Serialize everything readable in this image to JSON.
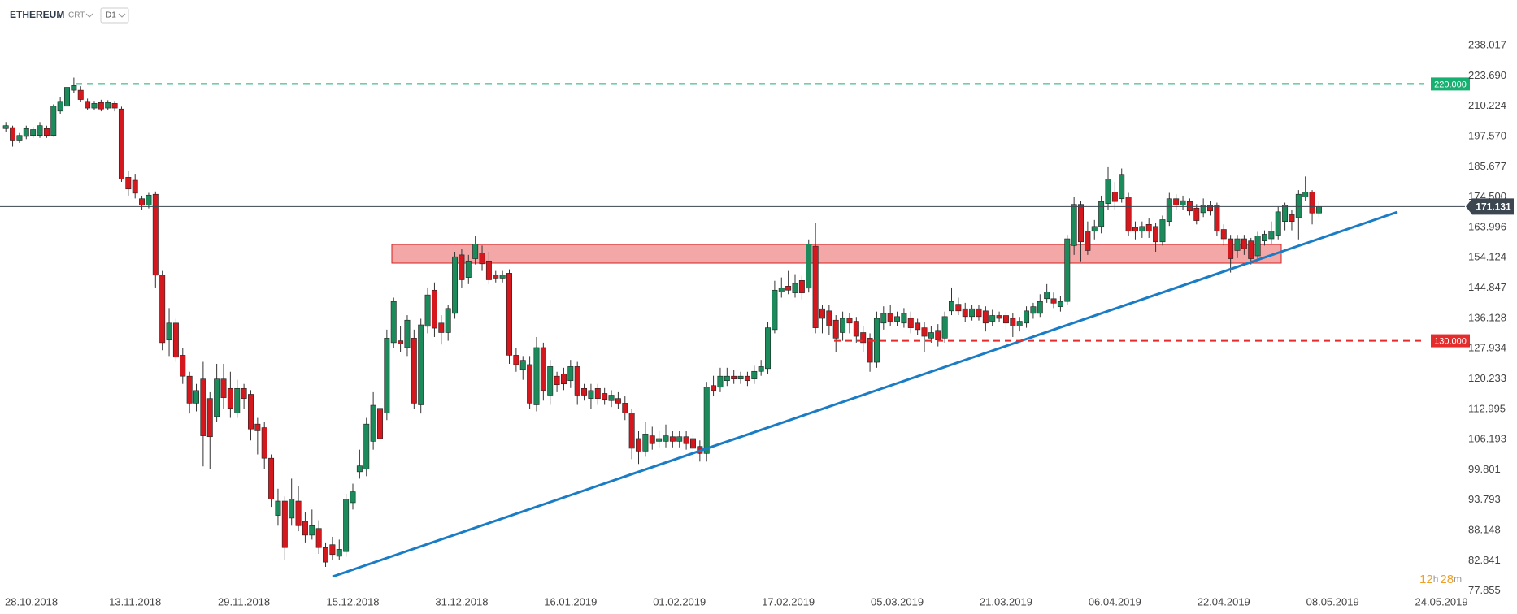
{
  "toolbar": {
    "symbol": "ETHEREUM",
    "chart_type": "CRT",
    "interval": "D1"
  },
  "countdown": [
    "12",
    "h",
    "28",
    "m"
  ],
  "chart_data": {
    "type": "candlestick",
    "log_scale": true,
    "up_color": "#1c8b5b",
    "down_color": "#d4181e",
    "last_price": 171.131,
    "last_price_color": "#3b4650",
    "levels": [
      {
        "value": 220,
        "label": "220.000",
        "color": "#17b070"
      },
      {
        "value": 130,
        "label": "130.000",
        "color": "#e52b2b"
      }
    ],
    "ylim": [
      77.3,
      261.3
    ],
    "yticks": [
      238.017,
      {
        "value": 223.69,
        "label": "223.690"
      },
      210.224,
      {
        "value": 197.57,
        "label": "197.570"
      },
      185.677,
      {
        "value": 174.5,
        "label": "174.500"
      },
      163.996,
      154.124,
      144.847,
      136.128,
      127.934,
      120.233,
      112.995,
      106.193,
      99.801,
      93.793,
      88.148,
      82.841,
      77.855
    ],
    "categories": [
      null,
      null,
      null,
      "28.10.2018",
      null,
      null,
      null,
      null,
      null,
      null,
      null,
      null,
      null,
      null,
      null,
      null,
      null,
      null,
      null,
      "13.11.2018",
      null,
      null,
      null,
      null,
      null,
      null,
      null,
      null,
      null,
      null,
      null,
      null,
      null,
      null,
      null,
      "29.11.2018",
      null,
      null,
      null,
      null,
      null,
      null,
      null,
      null,
      null,
      null,
      null,
      null,
      null,
      null,
      null,
      "15.12.2018",
      null,
      null,
      null,
      null,
      null,
      null,
      null,
      null,
      null,
      null,
      null,
      null,
      null,
      null,
      null,
      "31.12.2018",
      null,
      null,
      null,
      null,
      null,
      null,
      null,
      null,
      null,
      null,
      null,
      null,
      null,
      null,
      null,
      "16.01.2019",
      null,
      null,
      null,
      null,
      null,
      null,
      null,
      null,
      null,
      null,
      null,
      null,
      null,
      null,
      null,
      "01.02.2019",
      null,
      null,
      null,
      null,
      null,
      null,
      null,
      null,
      null,
      null,
      null,
      null,
      null,
      null,
      null,
      "17.02.2019",
      null,
      null,
      null,
      null,
      null,
      null,
      null,
      null,
      null,
      null,
      null,
      null,
      null,
      null,
      null,
      "05.03.2019",
      null,
      null,
      null,
      null,
      null,
      null,
      null,
      null,
      null,
      null,
      null,
      null,
      null,
      null,
      null,
      "21.03.2019",
      null,
      null,
      null,
      null,
      null,
      null,
      null,
      null,
      null,
      null,
      null,
      null,
      null,
      null,
      null,
      "06.04.2019",
      null,
      null,
      null,
      null,
      null,
      null,
      null,
      null,
      null,
      null,
      null,
      null,
      null,
      null,
      null,
      "22.04.2019",
      null,
      null,
      null,
      null,
      null,
      null,
      null,
      null,
      null,
      null,
      null,
      null,
      null,
      null,
      null,
      "08.05.2019",
      null,
      null,
      null,
      null,
      null,
      null,
      null,
      null,
      null,
      null,
      null,
      null,
      null,
      null,
      null,
      "24.05.2019",
      null,
      null
    ],
    "ohlc": [
      [
        200.8,
        203.5,
        199.5,
        202.0
      ],
      [
        201.2,
        202,
        193.5,
        196.1
      ],
      [
        196.1,
        199,
        195,
        198.0
      ],
      [
        197.6,
        202,
        196.5,
        200.8
      ],
      [
        198,
        201.5,
        197,
        200.4
      ],
      [
        198,
        203.5,
        197,
        202
      ],
      [
        200.8,
        202,
        197,
        198
      ],
      [
        198,
        211,
        197.5,
        210.2
      ],
      [
        208.1,
        214,
        207,
        212.3
      ],
      [
        210.2,
        220,
        209.5,
        218.5
      ],
      [
        217.2,
        222.9,
        216,
        219.3
      ],
      [
        217.2,
        219,
        212,
        213.1
      ],
      [
        212.3,
        213.5,
        208.5,
        209.4
      ],
      [
        209.4,
        212.5,
        208.5,
        211.4
      ],
      [
        211.8,
        213,
        208,
        209
      ],
      [
        209.4,
        212.8,
        208.5,
        211.8
      ],
      [
        211.4,
        212.5,
        208,
        209.4
      ],
      [
        209,
        210,
        180,
        181
      ],
      [
        181.7,
        184,
        175,
        177.4
      ],
      [
        180.6,
        183,
        174,
        175.9
      ],
      [
        173.9,
        175,
        170,
        171.6
      ],
      [
        171.6,
        176,
        170.5,
        175.2
      ],
      [
        175.5,
        176.5,
        145,
        148.7
      ],
      [
        148.7,
        150,
        127.5,
        129.5
      ],
      [
        130.2,
        139,
        126,
        134.8
      ],
      [
        134.8,
        136,
        124.5,
        125.7
      ],
      [
        126.2,
        128,
        119,
        120.9
      ],
      [
        120.9,
        122,
        112,
        114.4
      ],
      [
        114.4,
        119,
        112.5,
        117.4
      ],
      [
        120.2,
        124.5,
        100.5,
        107
      ],
      [
        115.5,
        117,
        100,
        106.8
      ],
      [
        111.3,
        124,
        110,
        120.2
      ],
      [
        120.2,
        124,
        113,
        115.7
      ],
      [
        117.9,
        122,
        111,
        113.2
      ],
      [
        112.1,
        120,
        111,
        117.9
      ],
      [
        117.9,
        119,
        113,
        115.5
      ],
      [
        116.5,
        117.5,
        106,
        108.5
      ],
      [
        109.6,
        111,
        103,
        108.1
      ],
      [
        108.8,
        110,
        100,
        102.2
      ],
      [
        102.2,
        103,
        92.5,
        94
      ],
      [
        90.9,
        96,
        89,
        93.6
      ],
      [
        93.6,
        94.5,
        83,
        85.1
      ],
      [
        90.4,
        98,
        89,
        94
      ],
      [
        93.6,
        96.5,
        88,
        89
      ],
      [
        89.8,
        91.5,
        86,
        87.3
      ],
      [
        87.3,
        92,
        86.5,
        89
      ],
      [
        88.5,
        90,
        84,
        85.1
      ],
      [
        85.1,
        86,
        81.8,
        82.6
      ],
      [
        85.6,
        87,
        83,
        83.9
      ],
      [
        83.6,
        86.5,
        83,
        84.8
      ],
      [
        84.4,
        95,
        83.5,
        94
      ],
      [
        93.3,
        97,
        92,
        95.4
      ],
      [
        99.4,
        104,
        98,
        100.6
      ],
      [
        100,
        111,
        98.5,
        109.6
      ],
      [
        105.8,
        117,
        104,
        113.9
      ],
      [
        113.2,
        118,
        104,
        106.4
      ],
      [
        112.1,
        133,
        110.5,
        130.7
      ],
      [
        129.5,
        142,
        128,
        140.9
      ],
      [
        130,
        134,
        127,
        129.2
      ],
      [
        128.2,
        137,
        126,
        135.6
      ],
      [
        130.7,
        133,
        113,
        114.4
      ],
      [
        114,
        136,
        112,
        134.3
      ],
      [
        133.9,
        145,
        132,
        142.8
      ],
      [
        144.2,
        146.5,
        131,
        133.4
      ],
      [
        134.8,
        137,
        129,
        132.2
      ],
      [
        132.2,
        140,
        130,
        138.9
      ],
      [
        137.5,
        156,
        136,
        154.4
      ],
      [
        155,
        157,
        145,
        147.3
      ],
      [
        148,
        155,
        146,
        153.1
      ],
      [
        153.8,
        161,
        152,
        158.5
      ],
      [
        155.6,
        158,
        150,
        152.2
      ],
      [
        153.1,
        156,
        146,
        147.3
      ],
      [
        148.7,
        150,
        146.5,
        147.8
      ],
      [
        147.8,
        150,
        146.5,
        148.7
      ],
      [
        149.3,
        150.5,
        124,
        126.2
      ],
      [
        126.2,
        128,
        122,
        123.8
      ],
      [
        122.6,
        126,
        120,
        124.9
      ],
      [
        123.8,
        126,
        113,
        114.4
      ],
      [
        114,
        131,
        112.5,
        128.2
      ],
      [
        128.2,
        129.5,
        115,
        117.4
      ],
      [
        116.3,
        125,
        114,
        123.3
      ],
      [
        120.9,
        122,
        117,
        118.8
      ],
      [
        121.4,
        123,
        117.5,
        119
      ],
      [
        119.8,
        125,
        118,
        123.3
      ],
      [
        123.3,
        124.5,
        114,
        116.3
      ],
      [
        117.9,
        119,
        115,
        116.3
      ],
      [
        115.5,
        119,
        113,
        117.4
      ],
      [
        117.9,
        119,
        114,
        115.5
      ],
      [
        116.7,
        118,
        114,
        115.3
      ],
      [
        115,
        117.5,
        113.5,
        116.3
      ],
      [
        115.5,
        117,
        113,
        114.4
      ],
      [
        114.4,
        116,
        110.5,
        112.1
      ],
      [
        112.1,
        113,
        102,
        104.3
      ],
      [
        106.4,
        108,
        101,
        103.7
      ],
      [
        103.7,
        110,
        102.5,
        107.4
      ],
      [
        107,
        109,
        104,
        105.3
      ],
      [
        105.8,
        108,
        104.5,
        106.4
      ],
      [
        105.8,
        109.5,
        104.5,
        107
      ],
      [
        106.8,
        108,
        104.5,
        105.8
      ],
      [
        105.8,
        108,
        104.5,
        106.8
      ],
      [
        106.8,
        108,
        104,
        105.3
      ],
      [
        106.4,
        107.5,
        102,
        104.3
      ],
      [
        104.7,
        106,
        101.5,
        103.2
      ],
      [
        103.2,
        119.5,
        101.5,
        118.2
      ],
      [
        118.6,
        121,
        116,
        117.4
      ],
      [
        118.2,
        123,
        117,
        120.9
      ],
      [
        119.8,
        123,
        118.5,
        120.9
      ],
      [
        120.9,
        122.5,
        119,
        120.2
      ],
      [
        120.2,
        122,
        119,
        120.9
      ],
      [
        120.9,
        122,
        118.5,
        119.8
      ],
      [
        120.2,
        123.5,
        119,
        122.1
      ],
      [
        122.1,
        125,
        121,
        123.3
      ],
      [
        122.8,
        135,
        121.5,
        133.5
      ],
      [
        133,
        147,
        132,
        144.2
      ],
      [
        143.7,
        148,
        142,
        144.8
      ],
      [
        145.4,
        150,
        143,
        144.2
      ],
      [
        143.4,
        149,
        142,
        146.2
      ],
      [
        147.1,
        148.5,
        141.5,
        143.4
      ],
      [
        144.8,
        160,
        143.5,
        158.5
      ],
      [
        157.8,
        165.5,
        132,
        133.5
      ],
      [
        138.8,
        140,
        132,
        136.1
      ],
      [
        138.2,
        140,
        131.5,
        134
      ],
      [
        135.6,
        137,
        127,
        130.7
      ],
      [
        132.2,
        138,
        130,
        136.1
      ],
      [
        136.1,
        137.5,
        132,
        134.8
      ],
      [
        135.3,
        136.5,
        129.5,
        131.2
      ],
      [
        132.2,
        134,
        127,
        129.5
      ],
      [
        130.7,
        132,
        122,
        124.4
      ],
      [
        124.4,
        138,
        123,
        136.1
      ],
      [
        134.8,
        139.5,
        133,
        137.5
      ],
      [
        137.5,
        140,
        134,
        135.3
      ],
      [
        135.3,
        138,
        134,
        136.6
      ],
      [
        134.8,
        139,
        133.5,
        137.5
      ],
      [
        136.1,
        138,
        132,
        133.5
      ],
      [
        134.8,
        136,
        131.5,
        133
      ],
      [
        133.5,
        135,
        127,
        131.2
      ],
      [
        130.7,
        134,
        129.5,
        132.2
      ],
      [
        132.8,
        134.5,
        128.5,
        130.2
      ],
      [
        130.7,
        138,
        129.5,
        136.6
      ],
      [
        138.2,
        145,
        137,
        140.9
      ],
      [
        140.1,
        142,
        137,
        138.2
      ],
      [
        138.8,
        140.5,
        135,
        136.6
      ],
      [
        136.6,
        140,
        135.5,
        138.8
      ],
      [
        138.8,
        140,
        135.5,
        136.6
      ],
      [
        138.2,
        139.5,
        132.5,
        134.8
      ],
      [
        135.3,
        138.5,
        134,
        136.9
      ],
      [
        136.9,
        138,
        135,
        136.1
      ],
      [
        136.9,
        138,
        133,
        134.8
      ],
      [
        136.1,
        137.5,
        131,
        134
      ],
      [
        134,
        136.5,
        132.5,
        135.3
      ],
      [
        134.8,
        139.5,
        133.5,
        138.2
      ],
      [
        137.5,
        140.5,
        136,
        139.4
      ],
      [
        137.5,
        143,
        136.5,
        140.9
      ],
      [
        141.7,
        146,
        140.5,
        143.7
      ],
      [
        141.7,
        143.5,
        139,
        140.4
      ],
      [
        139.4,
        142.5,
        138,
        140.9
      ],
      [
        140.9,
        161.5,
        140,
        160.2
      ],
      [
        158,
        174.5,
        155,
        171.9
      ],
      [
        171.9,
        173,
        153,
        159.2
      ],
      [
        162.7,
        166,
        155,
        156.4
      ],
      [
        162.7,
        166.5,
        160,
        164.3
      ],
      [
        164.3,
        175,
        162,
        172.9
      ],
      [
        172.2,
        185.5,
        170,
        181
      ],
      [
        176.3,
        180,
        170,
        172.9
      ],
      [
        173.9,
        185,
        172.5,
        182.8
      ],
      [
        174.5,
        176,
        161,
        162.7
      ],
      [
        164,
        166,
        160,
        162.7
      ],
      [
        162.7,
        166,
        160.5,
        164.3
      ],
      [
        165,
        167,
        160.5,
        162.7
      ],
      [
        164.3,
        165.5,
        156,
        159.2
      ],
      [
        159.2,
        168,
        158,
        166.6
      ],
      [
        166,
        176,
        164.5,
        173.9
      ],
      [
        173.9,
        175.5,
        170,
        171.6
      ],
      [
        171.6,
        175,
        170,
        173.2
      ],
      [
        172.9,
        174,
        168,
        169.6
      ],
      [
        170.6,
        172,
        165,
        166.3
      ],
      [
        169,
        174,
        167.5,
        171.6
      ],
      [
        171.6,
        173,
        168,
        169.6
      ],
      [
        171.6,
        172.5,
        161,
        162.7
      ],
      [
        163.3,
        165,
        158,
        160.2
      ],
      [
        160.2,
        161.5,
        149.5,
        153.8
      ],
      [
        156.4,
        161.5,
        154,
        160.2
      ],
      [
        160.2,
        161.5,
        155,
        157
      ],
      [
        159.5,
        160.5,
        152,
        153.8
      ],
      [
        154.7,
        162.5,
        153.5,
        161.1
      ],
      [
        159.5,
        163,
        158,
        161.7
      ],
      [
        160.2,
        166,
        158.5,
        162.7
      ],
      [
        161.4,
        171,
        160,
        169.3
      ],
      [
        166,
        172.5,
        163,
        171.6
      ],
      [
        168.3,
        170,
        163,
        166
      ],
      [
        167.3,
        177,
        160,
        175.5
      ],
      [
        174.5,
        182,
        173,
        176.3
      ],
      [
        176.3,
        177,
        165,
        168.9
      ],
      [
        168.9,
        173,
        167.5,
        171.131
      ],
      null,
      null,
      null,
      null,
      null,
      null,
      null,
      null,
      null,
      null,
      null,
      null,
      null,
      null,
      null,
      null,
      null,
      null,
      null,
      null
    ]
  }
}
